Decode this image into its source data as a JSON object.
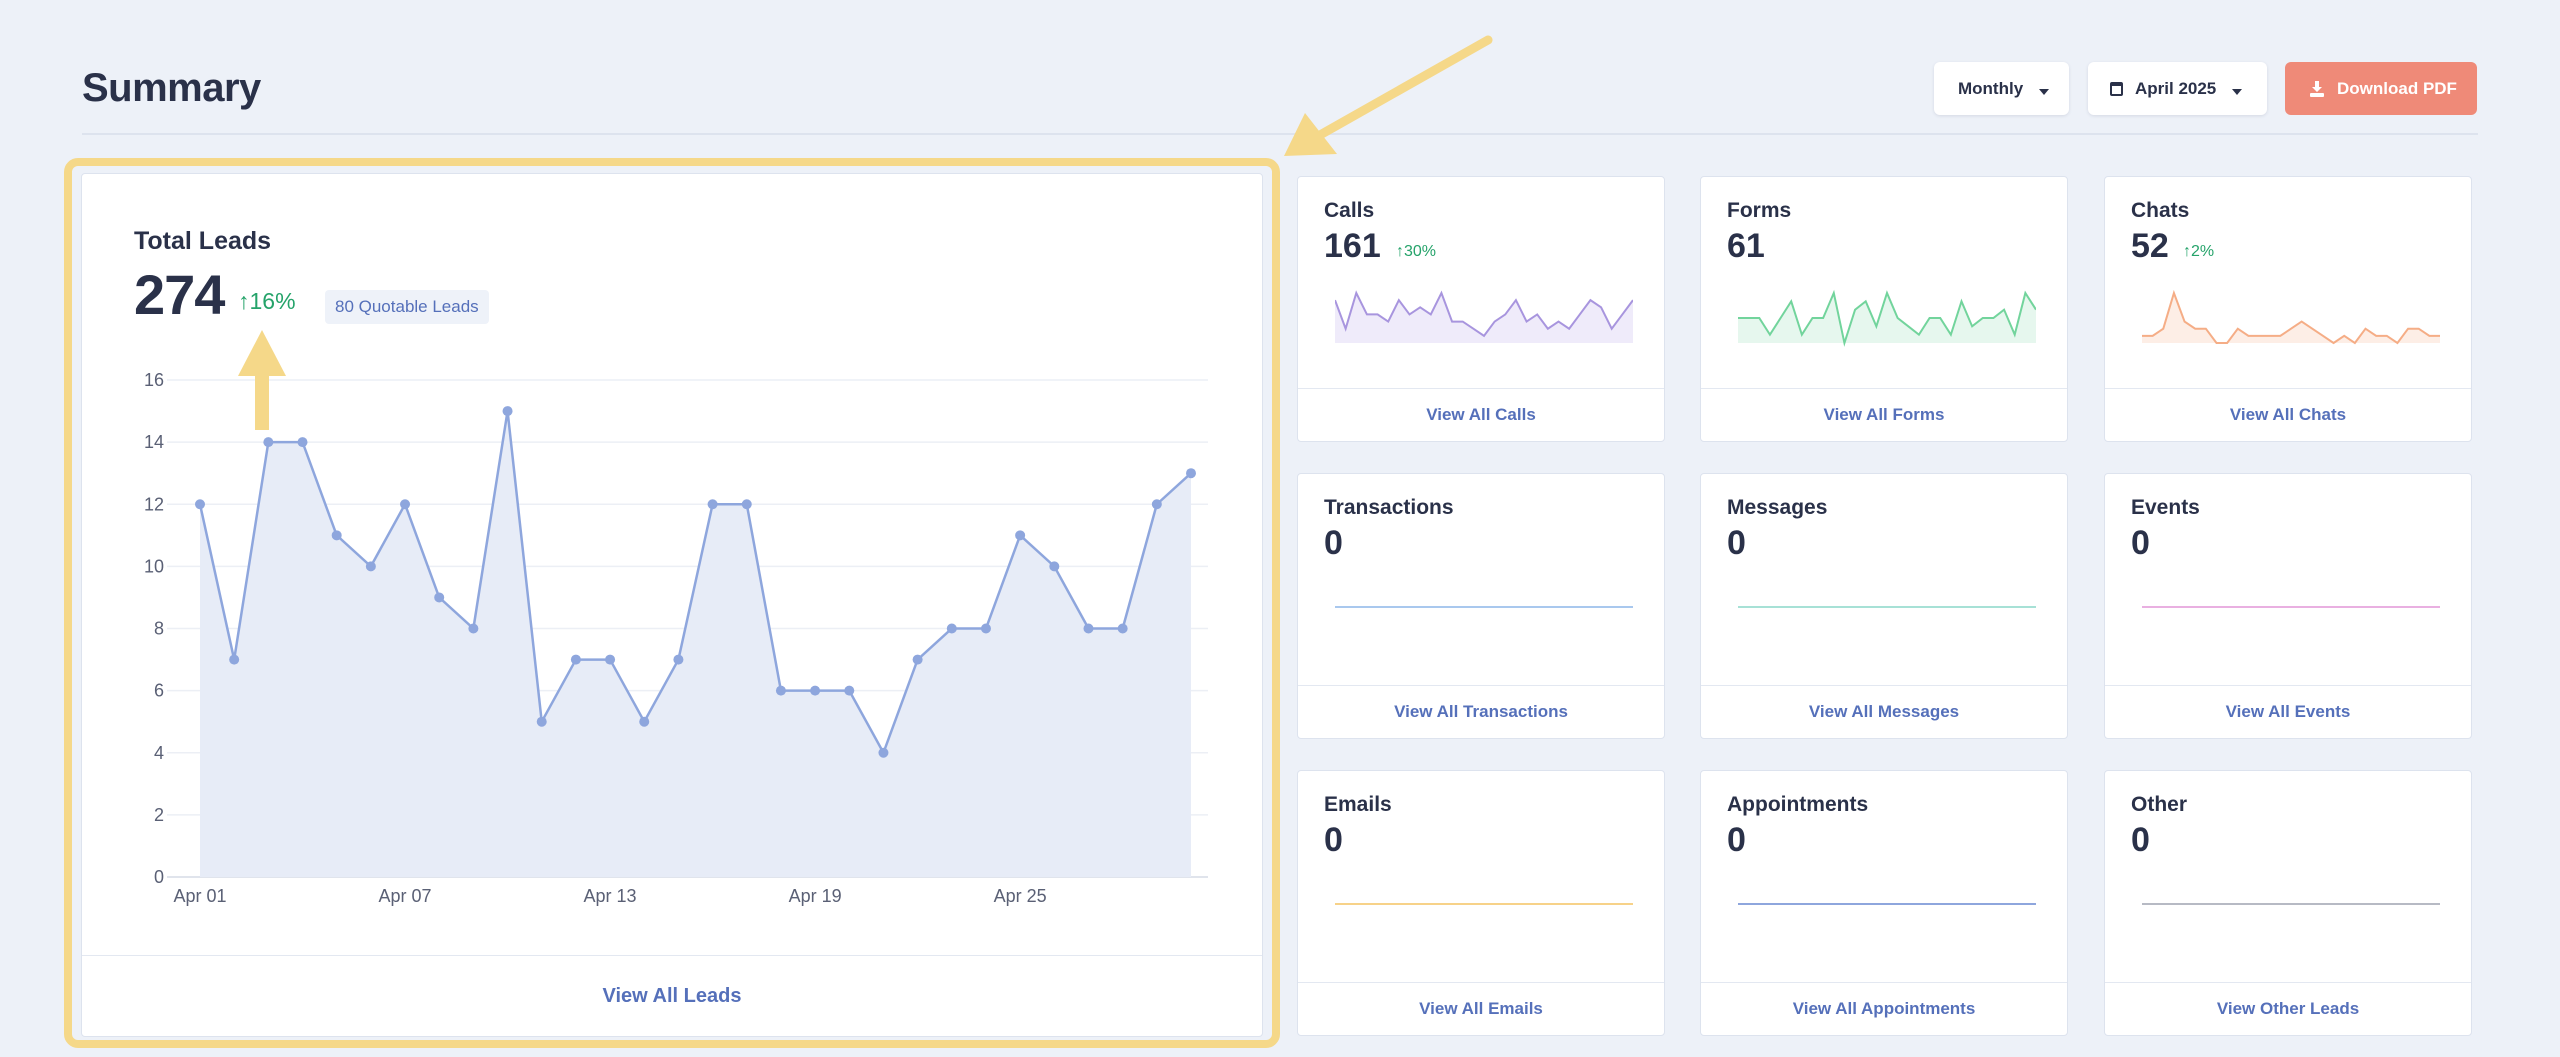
{
  "page": {
    "title": "Summary"
  },
  "controls": {
    "period": "Monthly",
    "month": "April 2025",
    "download": "Download PDF"
  },
  "main": {
    "title": "Total Leads",
    "value": "274",
    "trend": "16%",
    "badge": "80 Quotable Leads",
    "footer": "View All Leads"
  },
  "chart_data": {
    "type": "line",
    "x": [
      "Apr 01",
      "Apr 02",
      "Apr 03",
      "Apr 04",
      "Apr 05",
      "Apr 06",
      "Apr 07",
      "Apr 08",
      "Apr 09",
      "Apr 10",
      "Apr 11",
      "Apr 12",
      "Apr 13",
      "Apr 14",
      "Apr 15",
      "Apr 16",
      "Apr 17",
      "Apr 18",
      "Apr 19",
      "Apr 20",
      "Apr 21",
      "Apr 22",
      "Apr 23",
      "Apr 24",
      "Apr 25",
      "Apr 26",
      "Apr 27",
      "Apr 28",
      "Apr 29",
      "Apr 30"
    ],
    "values": [
      12,
      7,
      14,
      14,
      11,
      10,
      12,
      9,
      8,
      15,
      5,
      7,
      7,
      5,
      7,
      12,
      12,
      6,
      6,
      6,
      4,
      7,
      8,
      8,
      11,
      10,
      8,
      8,
      12,
      13
    ],
    "xticks": [
      "Apr 01",
      "Apr 07",
      "Apr 13",
      "Apr 19",
      "Apr 25"
    ],
    "yticks": [
      0,
      2,
      4,
      6,
      8,
      10,
      12,
      14,
      16
    ],
    "ylim": [
      0,
      16
    ],
    "grid": true,
    "color": "#8ea6dd",
    "fill": "#e7ecf7"
  },
  "cards": [
    {
      "title": "Calls",
      "value": "161",
      "trend": "30%",
      "footer": "View All Calls",
      "color": "#a895de",
      "fill": "#efebfa",
      "spark": [
        6,
        2,
        7,
        4,
        4,
        3,
        6,
        4,
        5,
        4,
        7,
        3,
        3,
        2,
        1,
        3,
        4,
        6,
        3,
        4,
        2,
        3,
        2,
        4,
        6,
        5,
        2,
        4,
        6
      ]
    },
    {
      "title": "Forms",
      "value": "61",
      "trend": "",
      "footer": "View All Forms",
      "color": "#72d49c",
      "fill": "#e6f7ee",
      "spark": [
        3,
        3,
        3,
        1,
        3,
        5,
        1,
        3,
        3,
        6,
        0,
        4,
        5,
        2,
        6,
        3,
        2,
        1,
        3,
        3,
        1,
        5,
        2,
        3,
        3,
        4,
        1,
        6,
        4
      ]
    },
    {
      "title": "Chats",
      "value": "52",
      "trend": "2%",
      "footer": "View All Chats",
      "color": "#f5ad86",
      "fill": "#fdeee6",
      "spark": [
        1,
        1,
        2,
        7,
        3,
        2,
        2,
        0,
        0,
        2,
        1,
        1,
        1,
        1,
        2,
        3,
        2,
        1,
        0,
        1,
        0,
        2,
        1,
        1,
        0,
        2,
        2,
        1,
        1
      ]
    },
    {
      "title": "Transactions",
      "value": "0",
      "trend": "",
      "footer": "View All Transactions",
      "color": "#a9c8ee",
      "fill": "",
      "spark": []
    },
    {
      "title": "Messages",
      "value": "0",
      "trend": "",
      "footer": "View All Messages",
      "color": "#a7e1d6",
      "fill": "",
      "spark": []
    },
    {
      "title": "Events",
      "value": "0",
      "trend": "",
      "footer": "View All Events",
      "color": "#e9b0e1",
      "fill": "",
      "spark": []
    },
    {
      "title": "Emails",
      "value": "0",
      "trend": "",
      "footer": "View All Emails",
      "color": "#f7d289",
      "fill": "",
      "spark": []
    },
    {
      "title": "Appointments",
      "value": "0",
      "trend": "",
      "footer": "View All Appointments",
      "color": "#8ea6dd",
      "fill": "",
      "spark": []
    },
    {
      "title": "Other",
      "value": "0",
      "trend": "",
      "footer": "View Other Leads",
      "color": "#b7bac4",
      "fill": "",
      "spark": []
    }
  ],
  "icons": {
    "caret": "chevron-down-icon",
    "calendar": "calendar-icon",
    "download": "download-icon",
    "trend": "arrow-up-icon"
  }
}
